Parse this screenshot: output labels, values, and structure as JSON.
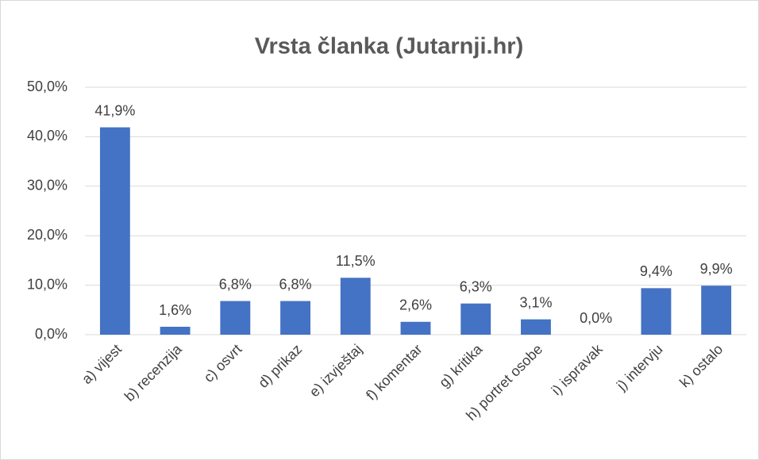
{
  "chart_data": {
    "type": "bar",
    "title": "Vrsta članka (Jutarnji.hr)",
    "categories": [
      "a) vijest",
      "b) recenzija",
      "c) osvrt",
      "d) prikaz",
      "e) izvještaj",
      "f) komentar",
      "g) kritika",
      "h) portret osobe",
      "i) ispravak",
      "j) intervju",
      "k) ostalo"
    ],
    "values": [
      41.9,
      1.6,
      6.8,
      6.8,
      11.5,
      2.6,
      6.3,
      3.1,
      0.0,
      9.4,
      9.9
    ],
    "value_labels": [
      "41,9%",
      "1,6%",
      "6,8%",
      "6,8%",
      "11,5%",
      "2,6%",
      "6,3%",
      "3,1%",
      "0,0%",
      "9,4%",
      "9,9%"
    ],
    "color": "#4472c4",
    "ylim": [
      0,
      50
    ],
    "yticks": [
      {
        "value": 0,
        "label": "0,0%"
      },
      {
        "value": 10,
        "label": "10,0%"
      },
      {
        "value": 20,
        "label": "20,0%"
      },
      {
        "value": 30,
        "label": "30,0%"
      },
      {
        "value": 40,
        "label": "40,0%"
      },
      {
        "value": 50,
        "label": "50,0%"
      }
    ],
    "grid": true
  }
}
